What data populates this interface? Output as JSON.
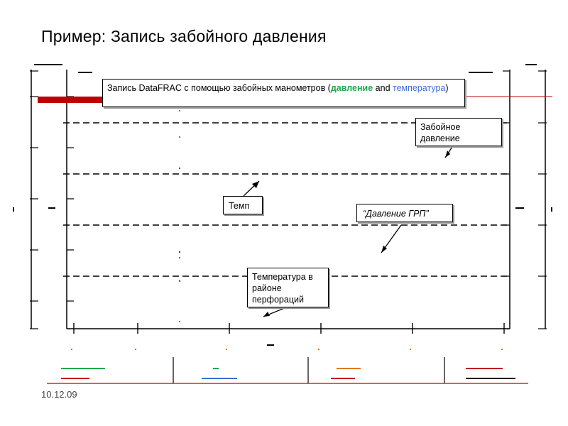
{
  "slide": {
    "title": "Пример: Запись забойного давления",
    "date": "10.12.09"
  },
  "callouts": {
    "main_prefix": "Запись DataFRAC с помощью забойных манометров (",
    "main_pressure": "давление",
    "main_and": " and ",
    "main_temperature": "температура",
    "main_suffix": ")",
    "bhp": "Забойное давление",
    "temp": "Темп",
    "grp": "“Давление ГРП”",
    "temp_perf": "Температура в районе перфораций"
  },
  "colors": {
    "pressure": "#22a84a",
    "temperature": "#3b6fd4",
    "trace_red": "#c00000",
    "legend_orange": "#e07a1f"
  },
  "chart_data": {
    "type": "line",
    "title": "",
    "grid": true,
    "gridlines": "dashed horizontal",
    "legend": "bottom",
    "series": []
  }
}
